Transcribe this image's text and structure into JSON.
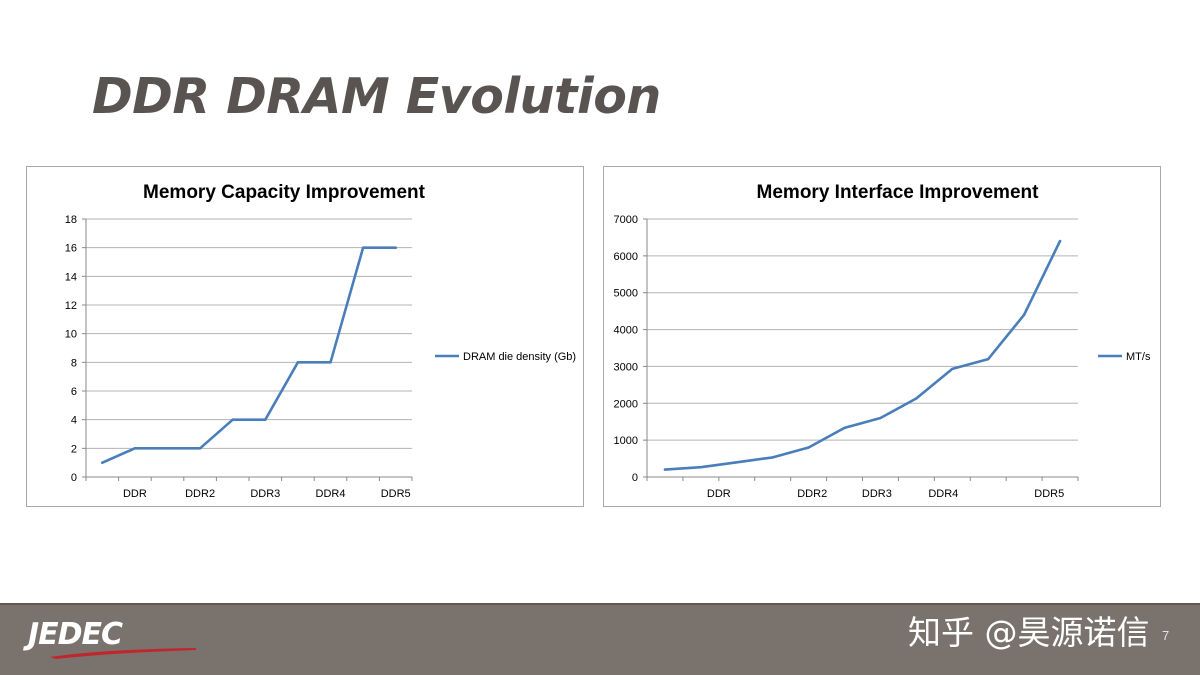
{
  "slide": {
    "title": "DDR DRAM Evolution",
    "page_number": "7"
  },
  "colors": {
    "series": "#4a7ebb",
    "grid": "#b3b3b3",
    "footer": "#7a726d",
    "title": "#595451"
  },
  "chart_data": [
    {
      "type": "line",
      "title": "Memory Capacity Improvement",
      "x_labels": [
        "DDR",
        "DDR2",
        "DDR3",
        "DDR4",
        "DDR5"
      ],
      "x": [
        1,
        2,
        3,
        4,
        5,
        6,
        7,
        8,
        9,
        10
      ],
      "series": [
        {
          "name": "DRAM die density (Gb)",
          "values": [
            1,
            2,
            2,
            2,
            4,
            4,
            8,
            8,
            16,
            16
          ]
        }
      ],
      "ylim": [
        0,
        18
      ],
      "yticks": [
        0,
        2,
        4,
        6,
        8,
        10,
        12,
        14,
        16,
        18
      ],
      "grid": true,
      "legend": "right"
    },
    {
      "type": "line",
      "title": "Memory Interface Improvement",
      "x_labels": [
        "DDR",
        "DDR2",
        "DDR3",
        "DDR4",
        "DDR5"
      ],
      "x": [
        1,
        2,
        3,
        4,
        5,
        6,
        7,
        8,
        9,
        10,
        11,
        12
      ],
      "series": [
        {
          "name": "MT/s",
          "values": [
            200,
            266,
            400,
            533,
            800,
            1333,
            1600,
            2133,
            2933,
            3200,
            4400,
            6400
          ]
        }
      ],
      "ylim": [
        0,
        7000
      ],
      "yticks": [
        0,
        1000,
        2000,
        3000,
        4000,
        5000,
        6000,
        7000
      ],
      "grid": true,
      "legend": "right"
    }
  ],
  "footer": {
    "logo_text": "JEDEC",
    "watermark": "知乎 @昊源诺信"
  }
}
